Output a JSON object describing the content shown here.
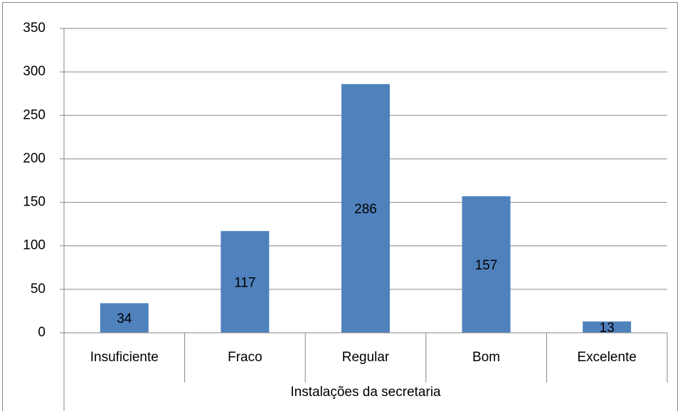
{
  "chart_data": {
    "type": "bar",
    "x_label": "Instalações da secretaria",
    "categories": [
      "Insuficiente",
      "Fraco",
      "Regular",
      "Bom",
      "Excelente"
    ],
    "values": [
      34,
      117,
      286,
      157,
      13
    ],
    "color": "#4f81bd",
    "ylim": [
      0,
      350
    ],
    "yticks": [
      0,
      50,
      100,
      150,
      200,
      250,
      300,
      350
    ],
    "grid": true,
    "data_labels": true
  }
}
